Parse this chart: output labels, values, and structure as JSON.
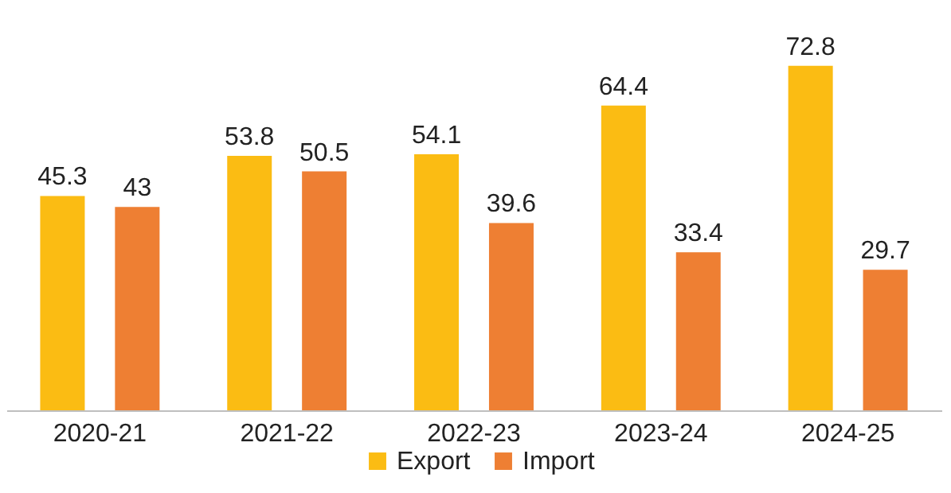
{
  "chart_data": {
    "type": "bar",
    "categories": [
      "2020-21",
      "2021-22",
      "2022-23",
      "2023-24",
      "2024-25"
    ],
    "series": [
      {
        "name": "Export",
        "color": "#fbbc13",
        "values": [
          45.3,
          53.8,
          54.1,
          64.4,
          72.8
        ]
      },
      {
        "name": "Import",
        "color": "#ee7f33",
        "values": [
          43,
          50.5,
          39.6,
          33.4,
          29.7
        ]
      }
    ],
    "data_labels": true,
    "legend": "bottom",
    "grid": false
  }
}
